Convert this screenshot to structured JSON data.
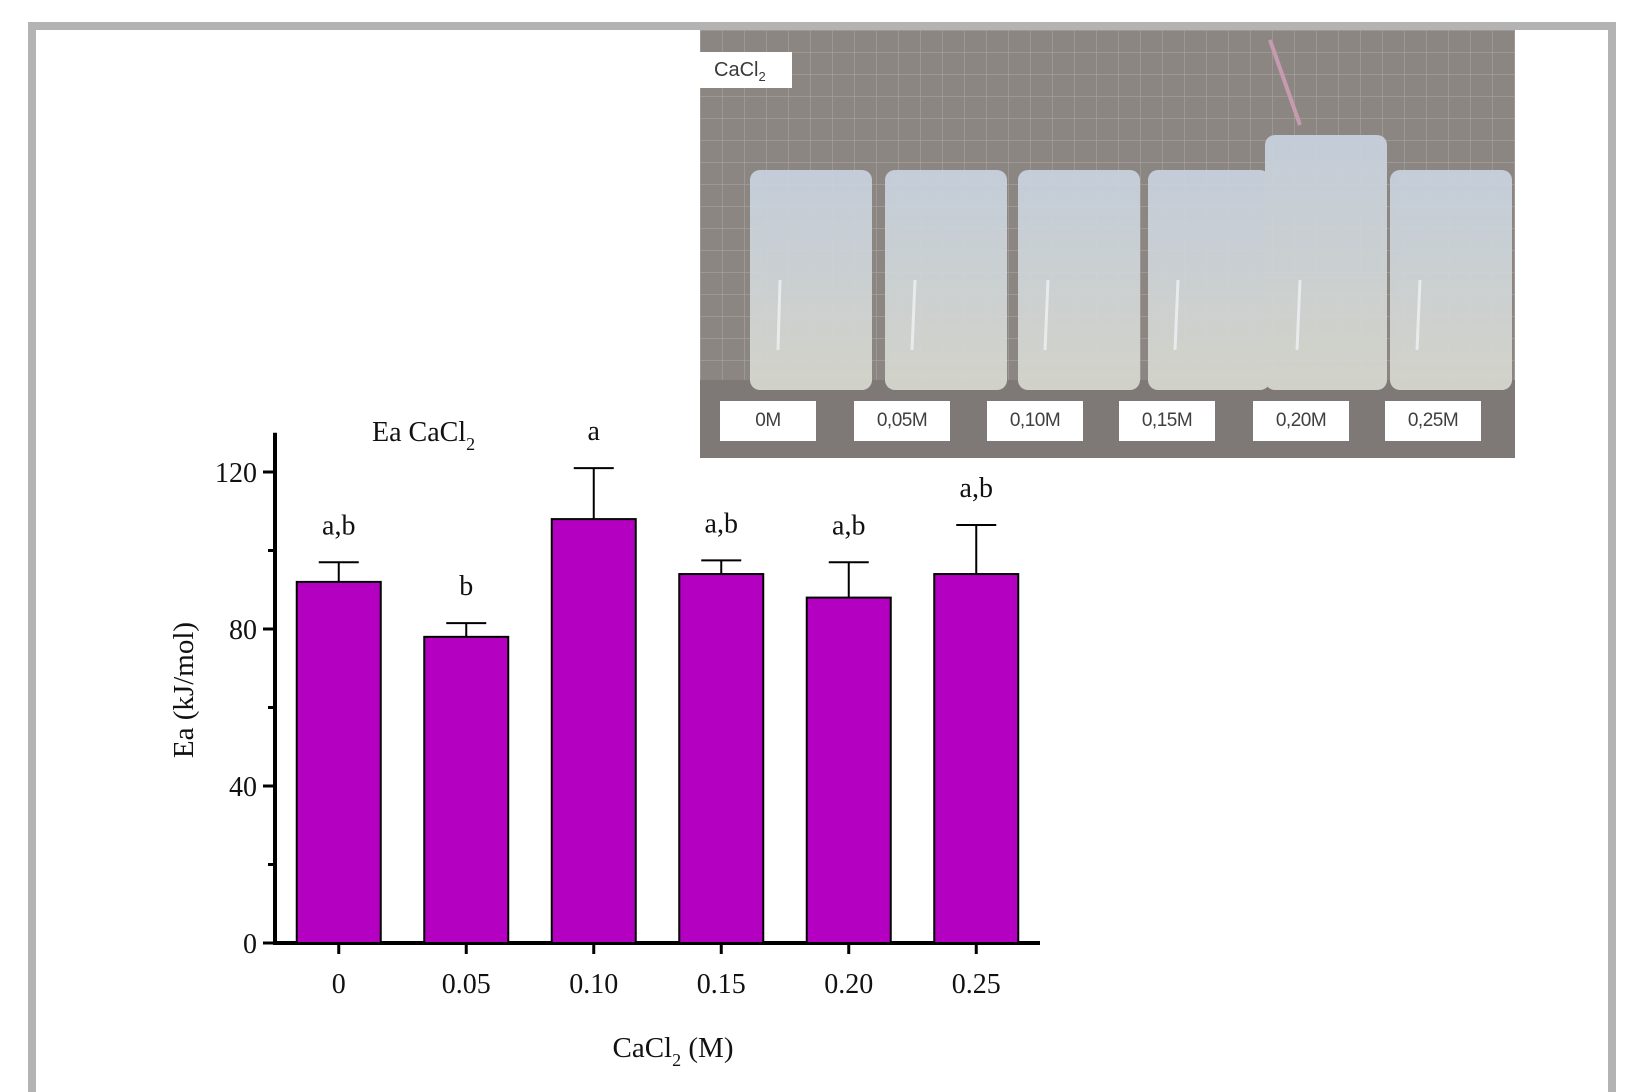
{
  "photo": {
    "title_main": "CaCl",
    "title_sub": "2",
    "vial_labels": [
      "0M",
      "0,05M",
      "0,10M",
      "0,15M",
      "0,20M",
      "0,25M"
    ]
  },
  "chart_data": {
    "type": "bar",
    "title_main": "Ea CaCl",
    "title_sub": "2",
    "xlabel_main": "CaCl",
    "xlabel_sub": "2",
    "xlabel_suffix": " (M)",
    "ylabel": "Ea (kJ/mol)",
    "categories": [
      "0",
      "0.05",
      "0.10",
      "0.15",
      "0.20",
      "0.25"
    ],
    "values": [
      92,
      78,
      108,
      94,
      88,
      94
    ],
    "errors": [
      5,
      3.5,
      13,
      3.5,
      9,
      12.5
    ],
    "significance_labels": [
      "a,b",
      "b",
      "a",
      "a,b",
      "a,b",
      "a,b"
    ],
    "ylim": [
      0,
      130
    ],
    "yticks": [
      0,
      40,
      80,
      120
    ],
    "grid": false,
    "bar_color": "#b400c0"
  }
}
